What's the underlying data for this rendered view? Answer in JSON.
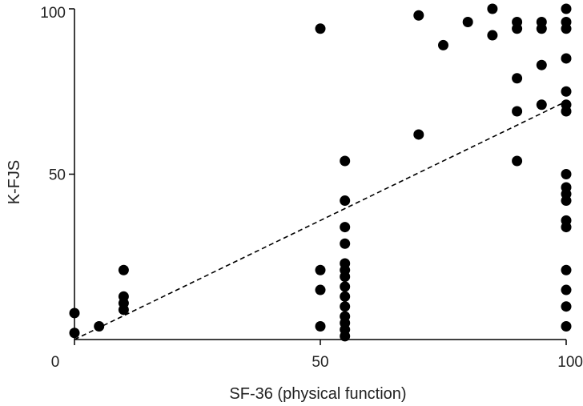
{
  "chart_data": {
    "type": "scatter",
    "xlabel": "SF-36 (physical function)",
    "ylabel": "K-FJS",
    "xlim": [
      0,
      100
    ],
    "ylim": [
      0,
      100
    ],
    "xticks": [
      0,
      50,
      100
    ],
    "yticks": [
      50,
      100
    ],
    "xtick_labels": [
      "0",
      "50",
      "100"
    ],
    "ytick_labels": [
      "50",
      "100"
    ],
    "grid": false,
    "points": [
      {
        "x": 0,
        "y": 8
      },
      {
        "x": 0,
        "y": 2
      },
      {
        "x": 5,
        "y": 4
      },
      {
        "x": 10,
        "y": 21
      },
      {
        "x": 10,
        "y": 13
      },
      {
        "x": 10,
        "y": 11
      },
      {
        "x": 10,
        "y": 9
      },
      {
        "x": 50,
        "y": 94
      },
      {
        "x": 50,
        "y": 21
      },
      {
        "x": 50,
        "y": 15
      },
      {
        "x": 50,
        "y": 4
      },
      {
        "x": 55,
        "y": 54
      },
      {
        "x": 55,
        "y": 42
      },
      {
        "x": 55,
        "y": 34
      },
      {
        "x": 55,
        "y": 29
      },
      {
        "x": 55,
        "y": 23
      },
      {
        "x": 55,
        "y": 21
      },
      {
        "x": 55,
        "y": 19
      },
      {
        "x": 55,
        "y": 16
      },
      {
        "x": 55,
        "y": 13
      },
      {
        "x": 55,
        "y": 10
      },
      {
        "x": 55,
        "y": 7
      },
      {
        "x": 55,
        "y": 5
      },
      {
        "x": 55,
        "y": 3
      },
      {
        "x": 55,
        "y": 1
      },
      {
        "x": 70,
        "y": 98
      },
      {
        "x": 70,
        "y": 62
      },
      {
        "x": 75,
        "y": 89
      },
      {
        "x": 80,
        "y": 96
      },
      {
        "x": 85,
        "y": 100
      },
      {
        "x": 85,
        "y": 92
      },
      {
        "x": 90,
        "y": 96
      },
      {
        "x": 90,
        "y": 94
      },
      {
        "x": 90,
        "y": 79
      },
      {
        "x": 90,
        "y": 69
      },
      {
        "x": 90,
        "y": 54
      },
      {
        "x": 95,
        "y": 96
      },
      {
        "x": 95,
        "y": 94
      },
      {
        "x": 95,
        "y": 83
      },
      {
        "x": 95,
        "y": 71
      },
      {
        "x": 100,
        "y": 100
      },
      {
        "x": 100,
        "y": 96
      },
      {
        "x": 100,
        "y": 94
      },
      {
        "x": 100,
        "y": 85
      },
      {
        "x": 100,
        "y": 75
      },
      {
        "x": 100,
        "y": 71
      },
      {
        "x": 100,
        "y": 69
      },
      {
        "x": 100,
        "y": 50
      },
      {
        "x": 100,
        "y": 46
      },
      {
        "x": 100,
        "y": 44
      },
      {
        "x": 100,
        "y": 42
      },
      {
        "x": 100,
        "y": 36
      },
      {
        "x": 100,
        "y": 34
      },
      {
        "x": 100,
        "y": 21
      },
      {
        "x": 100,
        "y": 15
      },
      {
        "x": 100,
        "y": 10
      },
      {
        "x": 100,
        "y": 4
      }
    ],
    "trendline": {
      "style": "dashed",
      "from": {
        "x": 0,
        "y": 0
      },
      "to": {
        "x": 100,
        "y": 72
      }
    }
  }
}
